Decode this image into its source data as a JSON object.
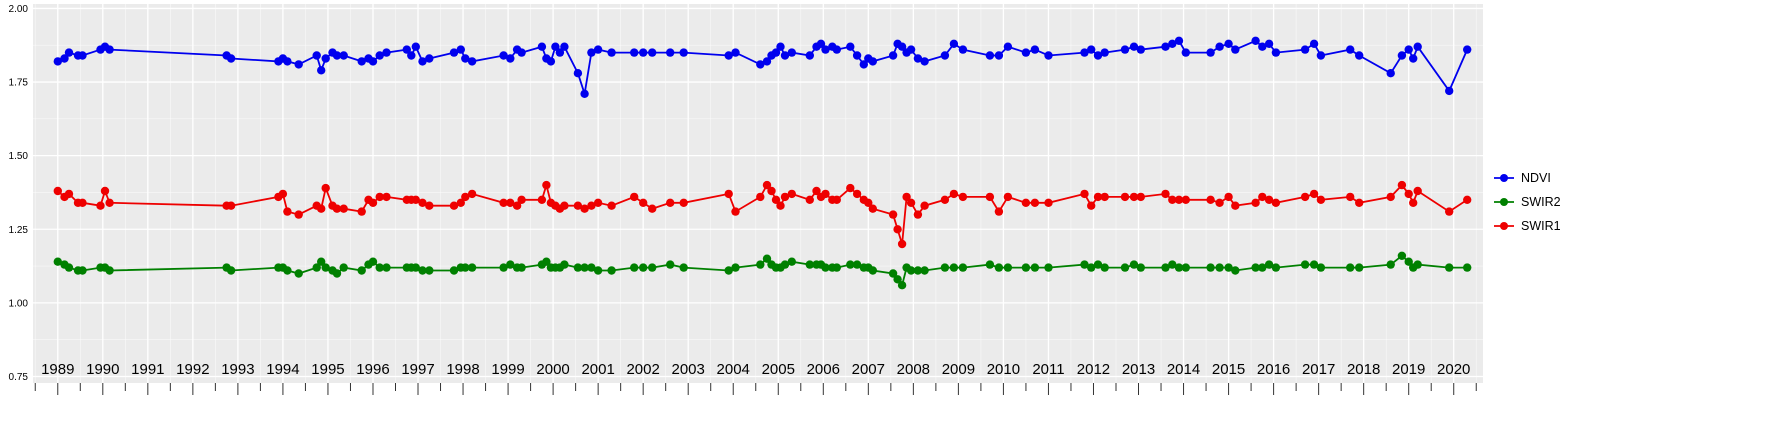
{
  "figure": {
    "background": "#ffffff"
  },
  "chart_data": {
    "type": "line",
    "title": "",
    "xlabel": "",
    "ylabel": "",
    "panel_bg": "#ebebeb",
    "grid_major_color": "#ffffff",
    "grid_minor_color": "#ffffff",
    "tick_color": "#333333",
    "label_color": "#000000",
    "legend_position": "right",
    "grid": true,
    "xlim": [
      1988.45,
      2020.65
    ],
    "ylim": [
      0.728,
      2.015
    ],
    "y_ticks": [
      0.75,
      1.0,
      1.25,
      1.5,
      1.75,
      2.0
    ],
    "y_tick_labels": [
      "0.75",
      "1.00",
      "1.25",
      "1.50",
      "1.75",
      "2.00"
    ],
    "x_ticks": [
      1989,
      1990,
      1991,
      1992,
      1993,
      1994,
      1995,
      1996,
      1997,
      1998,
      1999,
      2000,
      2001,
      2002,
      2003,
      2004,
      2005,
      2006,
      2007,
      2008,
      2009,
      2010,
      2011,
      2012,
      2013,
      2014,
      2015,
      2016,
      2017,
      2018,
      2019,
      2020
    ],
    "x_tick_labels": [
      "1989",
      "1990",
      "1991",
      "1992",
      "1993",
      "1994",
      "1995",
      "1996",
      "1997",
      "1998",
      "1999",
      "2000",
      "2001",
      "2002",
      "2003",
      "2004",
      "2005",
      "2006",
      "2007",
      "2008",
      "2009",
      "2010",
      "2011",
      "2012",
      "2013",
      "2014",
      "2015",
      "2016",
      "2017",
      "2018",
      "2019",
      "2020"
    ],
    "x": [
      1989.0,
      1989.15,
      1989.25,
      1989.45,
      1989.55,
      1989.95,
      1990.05,
      1990.15,
      1992.75,
      1992.85,
      1993.9,
      1994.0,
      1994.1,
      1994.35,
      1994.75,
      1994.85,
      1994.95,
      1995.1,
      1995.2,
      1995.35,
      1995.75,
      1995.9,
      1996.0,
      1996.15,
      1996.3,
      1996.75,
      1996.85,
      1996.95,
      1997.1,
      1997.25,
      1997.8,
      1997.95,
      1998.05,
      1998.2,
      1998.9,
      1999.05,
      1999.2,
      1999.3,
      1999.75,
      1999.85,
      1999.95,
      2000.05,
      2000.15,
      2000.25,
      2000.55,
      2000.7,
      2000.85,
      2001.0,
      2001.3,
      2001.8,
      2002.0,
      2002.2,
      2002.6,
      2002.9,
      2003.9,
      2004.05,
      2004.6,
      2004.75,
      2004.85,
      2004.95,
      2005.05,
      2005.15,
      2005.3,
      2005.7,
      2005.85,
      2005.95,
      2006.05,
      2006.2,
      2006.3,
      2006.6,
      2006.75,
      2006.9,
      2007.0,
      2007.1,
      2007.55,
      2007.65,
      2007.75,
      2007.85,
      2007.95,
      2008.1,
      2008.25,
      2008.7,
      2008.9,
      2009.1,
      2009.7,
      2009.9,
      2010.1,
      2010.5,
      2010.7,
      2011.0,
      2011.8,
      2011.95,
      2012.1,
      2012.25,
      2012.7,
      2012.9,
      2013.05,
      2013.6,
      2013.75,
      2013.9,
      2014.05,
      2014.6,
      2014.8,
      2015.0,
      2015.15,
      2015.6,
      2015.75,
      2015.9,
      2016.05,
      2016.7,
      2016.9,
      2017.05,
      2017.7,
      2017.9,
      2018.6,
      2018.85,
      2019.0,
      2019.1,
      2019.2,
      2019.9,
      2020.3
    ],
    "series": [
      {
        "name": "NDVI",
        "color": "#0000ee",
        "values": [
          1.82,
          1.83,
          1.85,
          1.84,
          1.84,
          1.86,
          1.87,
          1.86,
          1.84,
          1.83,
          1.82,
          1.83,
          1.82,
          1.81,
          1.84,
          1.79,
          1.83,
          1.85,
          1.84,
          1.84,
          1.82,
          1.83,
          1.82,
          1.84,
          1.85,
          1.86,
          1.84,
          1.87,
          1.82,
          1.83,
          1.85,
          1.86,
          1.83,
          1.82,
          1.84,
          1.83,
          1.86,
          1.85,
          1.87,
          1.83,
          1.82,
          1.87,
          1.85,
          1.87,
          1.78,
          1.71,
          1.85,
          1.86,
          1.85,
          1.85,
          1.85,
          1.85,
          1.85,
          1.85,
          1.84,
          1.85,
          1.81,
          1.82,
          1.84,
          1.85,
          1.87,
          1.84,
          1.85,
          1.84,
          1.87,
          1.88,
          1.86,
          1.87,
          1.86,
          1.87,
          1.84,
          1.81,
          1.83,
          1.82,
          1.84,
          1.88,
          1.87,
          1.85,
          1.86,
          1.83,
          1.82,
          1.84,
          1.88,
          1.86,
          1.84,
          1.84,
          1.87,
          1.85,
          1.86,
          1.84,
          1.85,
          1.86,
          1.84,
          1.85,
          1.86,
          1.87,
          1.86,
          1.87,
          1.88,
          1.89,
          1.85,
          1.85,
          1.87,
          1.88,
          1.86,
          1.89,
          1.87,
          1.88,
          1.85,
          1.86,
          1.88,
          1.84,
          1.86,
          1.84,
          1.78,
          1.84,
          1.86,
          1.83,
          1.87,
          1.72,
          1.86
        ]
      },
      {
        "name": "SWIR2",
        "color": "#008000",
        "values": [
          1.14,
          1.13,
          1.12,
          1.11,
          1.11,
          1.12,
          1.12,
          1.11,
          1.12,
          1.11,
          1.12,
          1.12,
          1.11,
          1.1,
          1.12,
          1.14,
          1.12,
          1.11,
          1.1,
          1.12,
          1.11,
          1.13,
          1.14,
          1.12,
          1.12,
          1.12,
          1.12,
          1.12,
          1.11,
          1.11,
          1.11,
          1.12,
          1.12,
          1.12,
          1.12,
          1.13,
          1.12,
          1.12,
          1.13,
          1.14,
          1.12,
          1.12,
          1.12,
          1.13,
          1.12,
          1.12,
          1.12,
          1.11,
          1.11,
          1.12,
          1.12,
          1.12,
          1.13,
          1.12,
          1.11,
          1.12,
          1.13,
          1.15,
          1.13,
          1.12,
          1.12,
          1.13,
          1.14,
          1.13,
          1.13,
          1.13,
          1.12,
          1.12,
          1.12,
          1.13,
          1.13,
          1.12,
          1.12,
          1.11,
          1.1,
          1.08,
          1.06,
          1.12,
          1.11,
          1.11,
          1.11,
          1.12,
          1.12,
          1.12,
          1.13,
          1.12,
          1.12,
          1.12,
          1.12,
          1.12,
          1.13,
          1.12,
          1.13,
          1.12,
          1.12,
          1.13,
          1.12,
          1.12,
          1.13,
          1.12,
          1.12,
          1.12,
          1.12,
          1.12,
          1.11,
          1.12,
          1.12,
          1.13,
          1.12,
          1.13,
          1.13,
          1.12,
          1.12,
          1.12,
          1.13,
          1.16,
          1.14,
          1.12,
          1.13,
          1.12,
          1.12
        ]
      },
      {
        "name": "SWIR1",
        "color": "#ee0000",
        "values": [
          1.38,
          1.36,
          1.37,
          1.34,
          1.34,
          1.33,
          1.38,
          1.34,
          1.33,
          1.33,
          1.36,
          1.37,
          1.31,
          1.3,
          1.33,
          1.32,
          1.39,
          1.33,
          1.32,
          1.32,
          1.31,
          1.35,
          1.34,
          1.36,
          1.36,
          1.35,
          1.35,
          1.35,
          1.34,
          1.33,
          1.33,
          1.34,
          1.36,
          1.37,
          1.34,
          1.34,
          1.33,
          1.35,
          1.35,
          1.4,
          1.34,
          1.33,
          1.32,
          1.33,
          1.33,
          1.32,
          1.33,
          1.34,
          1.33,
          1.36,
          1.34,
          1.32,
          1.34,
          1.34,
          1.37,
          1.31,
          1.36,
          1.4,
          1.38,
          1.35,
          1.33,
          1.36,
          1.37,
          1.35,
          1.38,
          1.36,
          1.37,
          1.35,
          1.35,
          1.39,
          1.37,
          1.35,
          1.34,
          1.32,
          1.3,
          1.25,
          1.2,
          1.36,
          1.34,
          1.3,
          1.33,
          1.35,
          1.37,
          1.36,
          1.36,
          1.31,
          1.36,
          1.34,
          1.34,
          1.34,
          1.37,
          1.33,
          1.36,
          1.36,
          1.36,
          1.36,
          1.36,
          1.37,
          1.35,
          1.35,
          1.35,
          1.35,
          1.34,
          1.36,
          1.33,
          1.34,
          1.36,
          1.35,
          1.34,
          1.36,
          1.37,
          1.35,
          1.36,
          1.34,
          1.36,
          1.4,
          1.37,
          1.34,
          1.38,
          1.31,
          1.35
        ]
      }
    ],
    "legend": {
      "items": [
        {
          "label": "NDVI",
          "color": "#0000ee"
        },
        {
          "label": "SWIR2",
          "color": "#008000"
        },
        {
          "label": "SWIR1",
          "color": "#ee0000"
        }
      ]
    }
  }
}
